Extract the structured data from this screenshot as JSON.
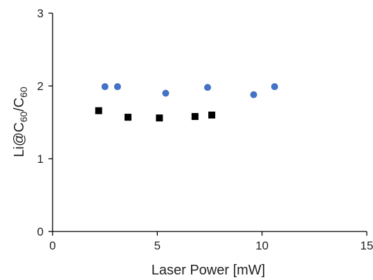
{
  "chart_data": {
    "type": "scatter",
    "xlabel": "Laser Power [mW]",
    "ylabel": {
      "main": "Li@C",
      "sub1": "60",
      "slash": "/C",
      "sub2": "60"
    },
    "xlim": [
      0,
      15
    ],
    "ylim": [
      0,
      3
    ],
    "xticks": [
      "0",
      "5",
      "10",
      "15"
    ],
    "yticks": [
      "0",
      "1",
      "2",
      "3"
    ],
    "grid": false,
    "legend": false,
    "series": [
      {
        "marker": "circle",
        "color": "#4472C4",
        "x": [
          2.5,
          3.1,
          5.4,
          7.4,
          9.6,
          10.6
        ],
        "y": [
          1.99,
          1.99,
          1.9,
          1.98,
          1.88,
          1.99
        ]
      },
      {
        "marker": "square",
        "color": "#000000",
        "x": [
          2.2,
          3.6,
          5.1,
          6.8,
          7.6
        ],
        "y": [
          1.66,
          1.57,
          1.56,
          1.58,
          1.6
        ]
      }
    ]
  }
}
